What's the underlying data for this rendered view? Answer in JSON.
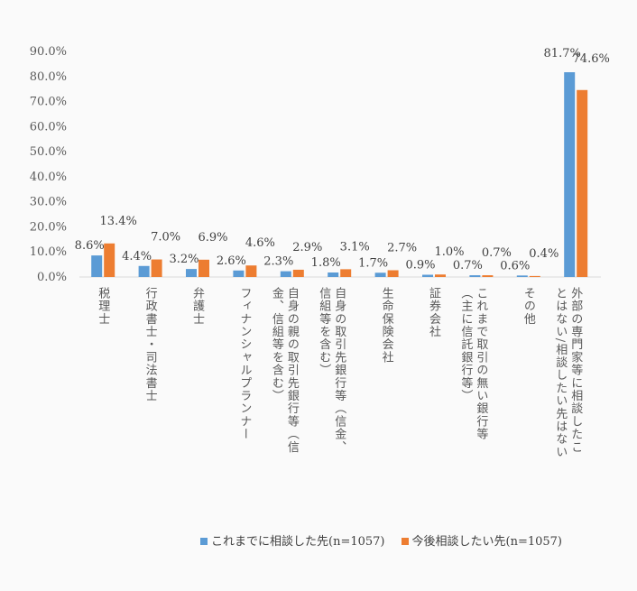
{
  "chart_data": {
    "type": "bar",
    "categories": [
      "税理士",
      "行政書士・司法書士",
      "弁護士",
      "フィナンシャルプランナー",
      "自身の親の取引先銀行等（信金、信組等を含む）",
      "自身の取引先銀行等（信金、信組等を含む）",
      "生命保険会社",
      "証券会社",
      "これまで取引の無い銀行等（主に信託銀行等）",
      "その他",
      "外部の専門家等に相談したことはない/相談したい先はない"
    ],
    "series": [
      {
        "name": "これまでに相談した先(n=1057)",
        "color": "#5b9bd5",
        "values": [
          8.6,
          4.4,
          3.2,
          2.6,
          2.3,
          1.8,
          1.7,
          0.9,
          0.7,
          0.6,
          81.7
        ]
      },
      {
        "name": "今後相談したい先(n=1057)",
        "color": "#ed7d31",
        "values": [
          13.4,
          7.0,
          6.9,
          4.6,
          2.9,
          3.1,
          2.7,
          1.0,
          0.7,
          0.4,
          74.6
        ]
      }
    ],
    "yticks": [
      "0.0%",
      "10.0%",
      "20.0%",
      "30.0%",
      "40.0%",
      "50.0%",
      "60.0%",
      "70.0%",
      "80.0%",
      "90.0%"
    ],
    "ylim": [
      0,
      90
    ],
    "grid": false,
    "legend": "bottom"
  }
}
